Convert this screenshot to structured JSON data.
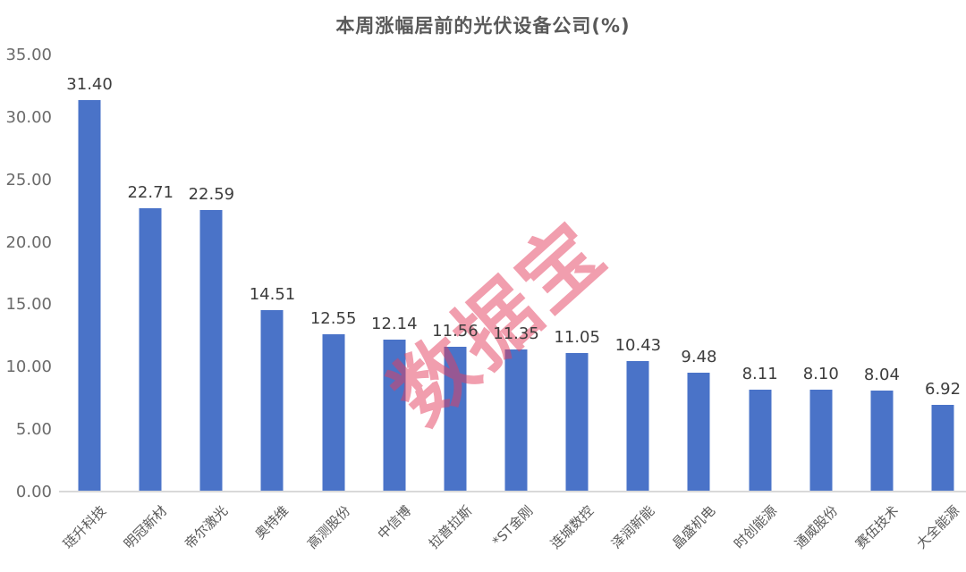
{
  "watermark": {
    "text": "数据宝",
    "color": "rgba(228, 62, 94, 0.5)"
  },
  "colors": {
    "bar": "#4A73C8",
    "title_text": "#595959",
    "axis_line": "#d9d9d9",
    "tick_text": "#6b6b6b",
    "value_text": "#3d3d3d"
  },
  "chart_data": {
    "type": "bar",
    "title": "本周涨幅居前的光伏设备公司(%)",
    "categories": [
      "琏升科技",
      "明冠新材",
      "帝尔激光",
      "奥特维",
      "高测股份",
      "中信博",
      "拉普拉斯",
      "*ST金刚",
      "连城数控",
      "泽润新能",
      "晶盛机电",
      "时创能源",
      "通威股份",
      "赛伍技术",
      "大全能源"
    ],
    "values": [
      31.4,
      22.71,
      22.59,
      14.51,
      12.55,
      12.14,
      11.56,
      11.35,
      11.05,
      10.43,
      9.48,
      8.11,
      8.1,
      8.04,
      6.92
    ],
    "value_label_decimals": 2,
    "xlabel": "",
    "ylabel": "",
    "ylim": [
      0,
      35
    ],
    "yticks": [
      35,
      30,
      25,
      20,
      15,
      10,
      5,
      0
    ],
    "ytick_decimals": 2,
    "grid": false,
    "legend": null,
    "x_label_rotation_deg": 45,
    "value_labels_shown": true
  }
}
